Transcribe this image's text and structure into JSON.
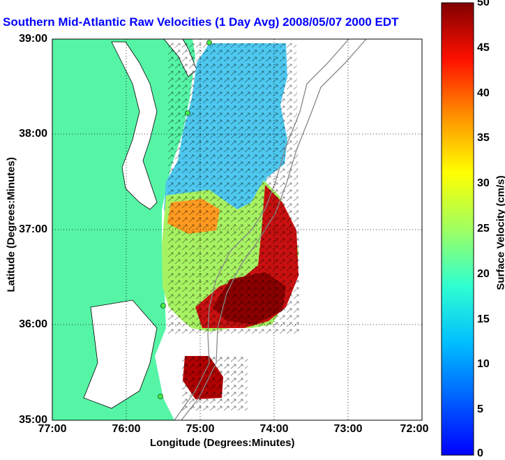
{
  "title": "Southern Mid-Atlantic Raw Velocities (1 Day Avg) 2008/05/07 2000 EDT",
  "map": {
    "xlabel": "Longitude (Degrees:Minutes)",
    "ylabel": "Latitude (Degrees:Minutes)",
    "xticks": [
      "77:00",
      "76:00",
      "75:00",
      "74:00",
      "73:00",
      "72:00"
    ],
    "yticks": [
      "39:00",
      "38:00",
      "37:00",
      "36:00",
      "35:00"
    ],
    "colors": {
      "land": "#55f5a5",
      "title": "#0000ff",
      "coast": "#000000",
      "bathymetry": "#888888",
      "station": "#44ee44"
    }
  },
  "colorbar": {
    "label": "Surface Velocity (cm/s)",
    "ticks": [
      "50",
      "45",
      "40",
      "35",
      "30",
      "25",
      "20",
      "15",
      "10",
      "5",
      "0"
    ],
    "min": 0,
    "max": 50,
    "colormap": "jet"
  }
}
